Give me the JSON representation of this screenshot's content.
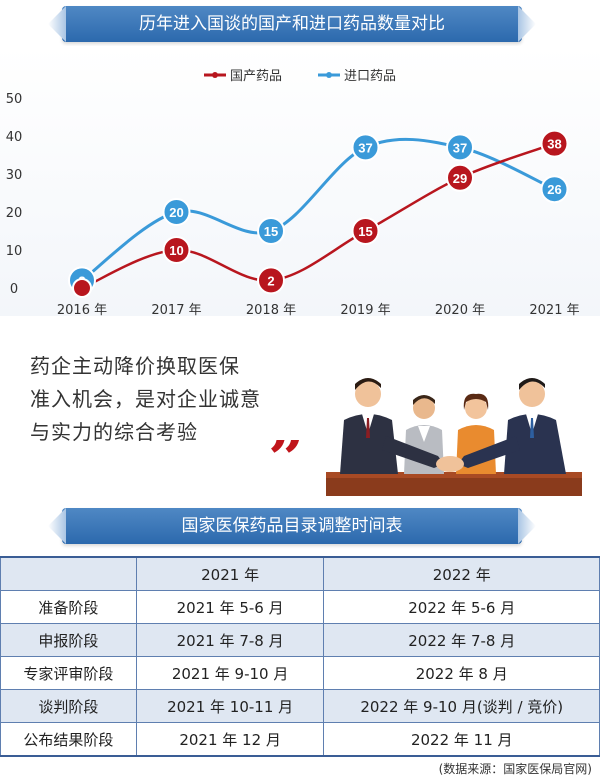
{
  "chart_data": {
    "type": "line",
    "title": "历年进入国谈的国产和进口药品数量对比",
    "categories": [
      "2016 年",
      "2017 年",
      "2018 年",
      "2019 年",
      "2020 年",
      "2021 年"
    ],
    "ylim": [
      0,
      50
    ],
    "yticks": [
      "0",
      "10",
      "20",
      "30",
      "40",
      "50"
    ],
    "legend_position": "top-center",
    "grid": false,
    "series": [
      {
        "name": "国产药品",
        "color": "#b8161e",
        "values": [
          0,
          10,
          2,
          15,
          29,
          38
        ],
        "labels": [
          "",
          "10",
          "2",
          "15",
          "29",
          "38"
        ]
      },
      {
        "name": "进口药品",
        "color": "#3a9ad9",
        "values": [
          2,
          20,
          15,
          37,
          37,
          26
        ],
        "labels": [
          "2",
          "20",
          "15",
          "37",
          "37",
          "26"
        ]
      }
    ]
  },
  "quote": {
    "lines": [
      "药企主动降价换取医保",
      "准入机会，是对企业诚意",
      "与实力的综合考验"
    ],
    "mark": "”"
  },
  "table": {
    "title": "国家医保药品目录调整时间表",
    "headers": [
      "",
      "2021 年",
      "2022 年"
    ],
    "rows": [
      [
        "准备阶段",
        "2021 年 5-6 月",
        "2022 年 5-6 月"
      ],
      [
        "申报阶段",
        "2021 年 7-8 月",
        "2022 年 7-8 月"
      ],
      [
        "专家评审阶段",
        "2021 年 9-10 月",
        "2022 年 8 月"
      ],
      [
        "谈判阶段",
        "2021 年 10-11 月",
        "2022 年 9-10 月(谈判 / 竞价)"
      ],
      [
        "公布结果阶段",
        "2021 年 12 月",
        "2022 年 11 月"
      ]
    ]
  },
  "source": "(数据来源：国家医保局官网)",
  "colors": {
    "banner": "#2c69ad",
    "domestic": "#b8161e",
    "imported": "#3a9ad9",
    "table_shade": "#dfe7f2"
  },
  "illustration": "business-handshake-illustration"
}
